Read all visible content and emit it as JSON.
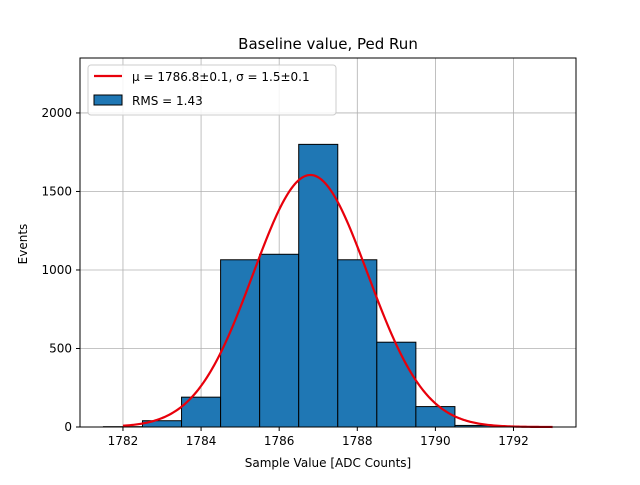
{
  "chart_data": {
    "type": "bar",
    "title": "Baseline value, Ped Run",
    "xlabel": "Sample Value [ADC Counts]",
    "ylabel": "Events",
    "xlim": [
      1780.9,
      1793.6
    ],
    "ylim": [
      0,
      2350
    ],
    "grid": true,
    "legend_position": "top-left",
    "x_ticks": [
      1782,
      1784,
      1786,
      1788,
      1790,
      1792
    ],
    "y_ticks": [
      0,
      500,
      1000,
      1500,
      2000
    ],
    "histogram": {
      "name": "RMS = 1.43",
      "bin_edges": [
        1781.5,
        1782.5,
        1783.5,
        1784.5,
        1785.5,
        1786.5,
        1787.5,
        1788.5,
        1789.5,
        1790.5,
        1791.5,
        1792.5
      ],
      "counts": [
        2,
        40,
        190,
        1065,
        1100,
        1800,
        1065,
        540,
        130,
        10,
        2
      ],
      "color": "#1f77b4",
      "edge_color": "#000000"
    },
    "fit": {
      "type": "gaussian",
      "legend_prefix": "μ = 1786.8±0.1, σ = 1.5±0.1",
      "mu": 1786.8,
      "sigma": 1.47,
      "amplitude": 1605,
      "x_range": [
        1782,
        1793
      ],
      "color": "#e8000b"
    }
  }
}
